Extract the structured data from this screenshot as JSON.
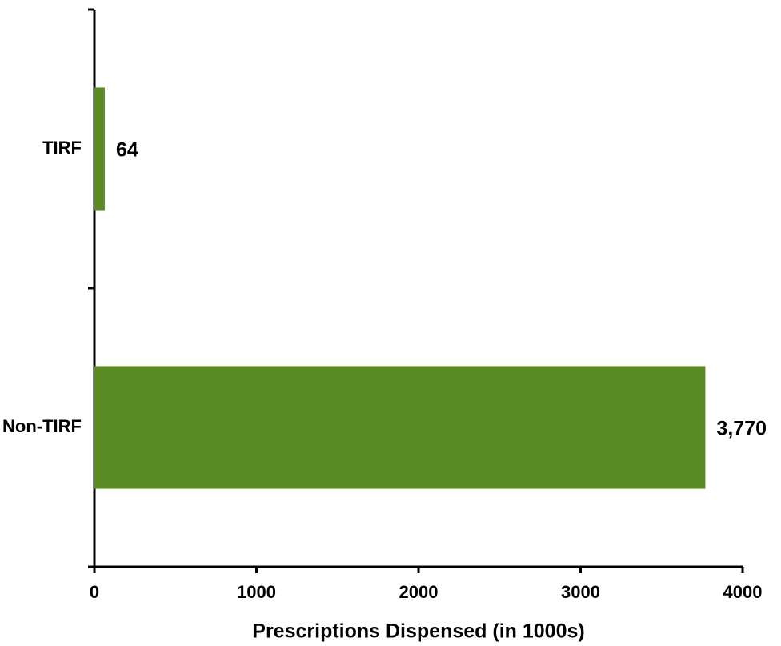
{
  "chart_data": {
    "type": "barh",
    "x_label": "Prescriptions Dispensed (in 1000s)",
    "categories": [
      "TIRF",
      "Non-TIRF"
    ],
    "values": [
      64,
      3770
    ],
    "value_labels": [
      "64",
      "3,770"
    ],
    "color": "#5b8c23",
    "xlim": [
      0,
      4000
    ],
    "xticks": [
      0,
      1000,
      2000,
      3000,
      4000
    ]
  }
}
